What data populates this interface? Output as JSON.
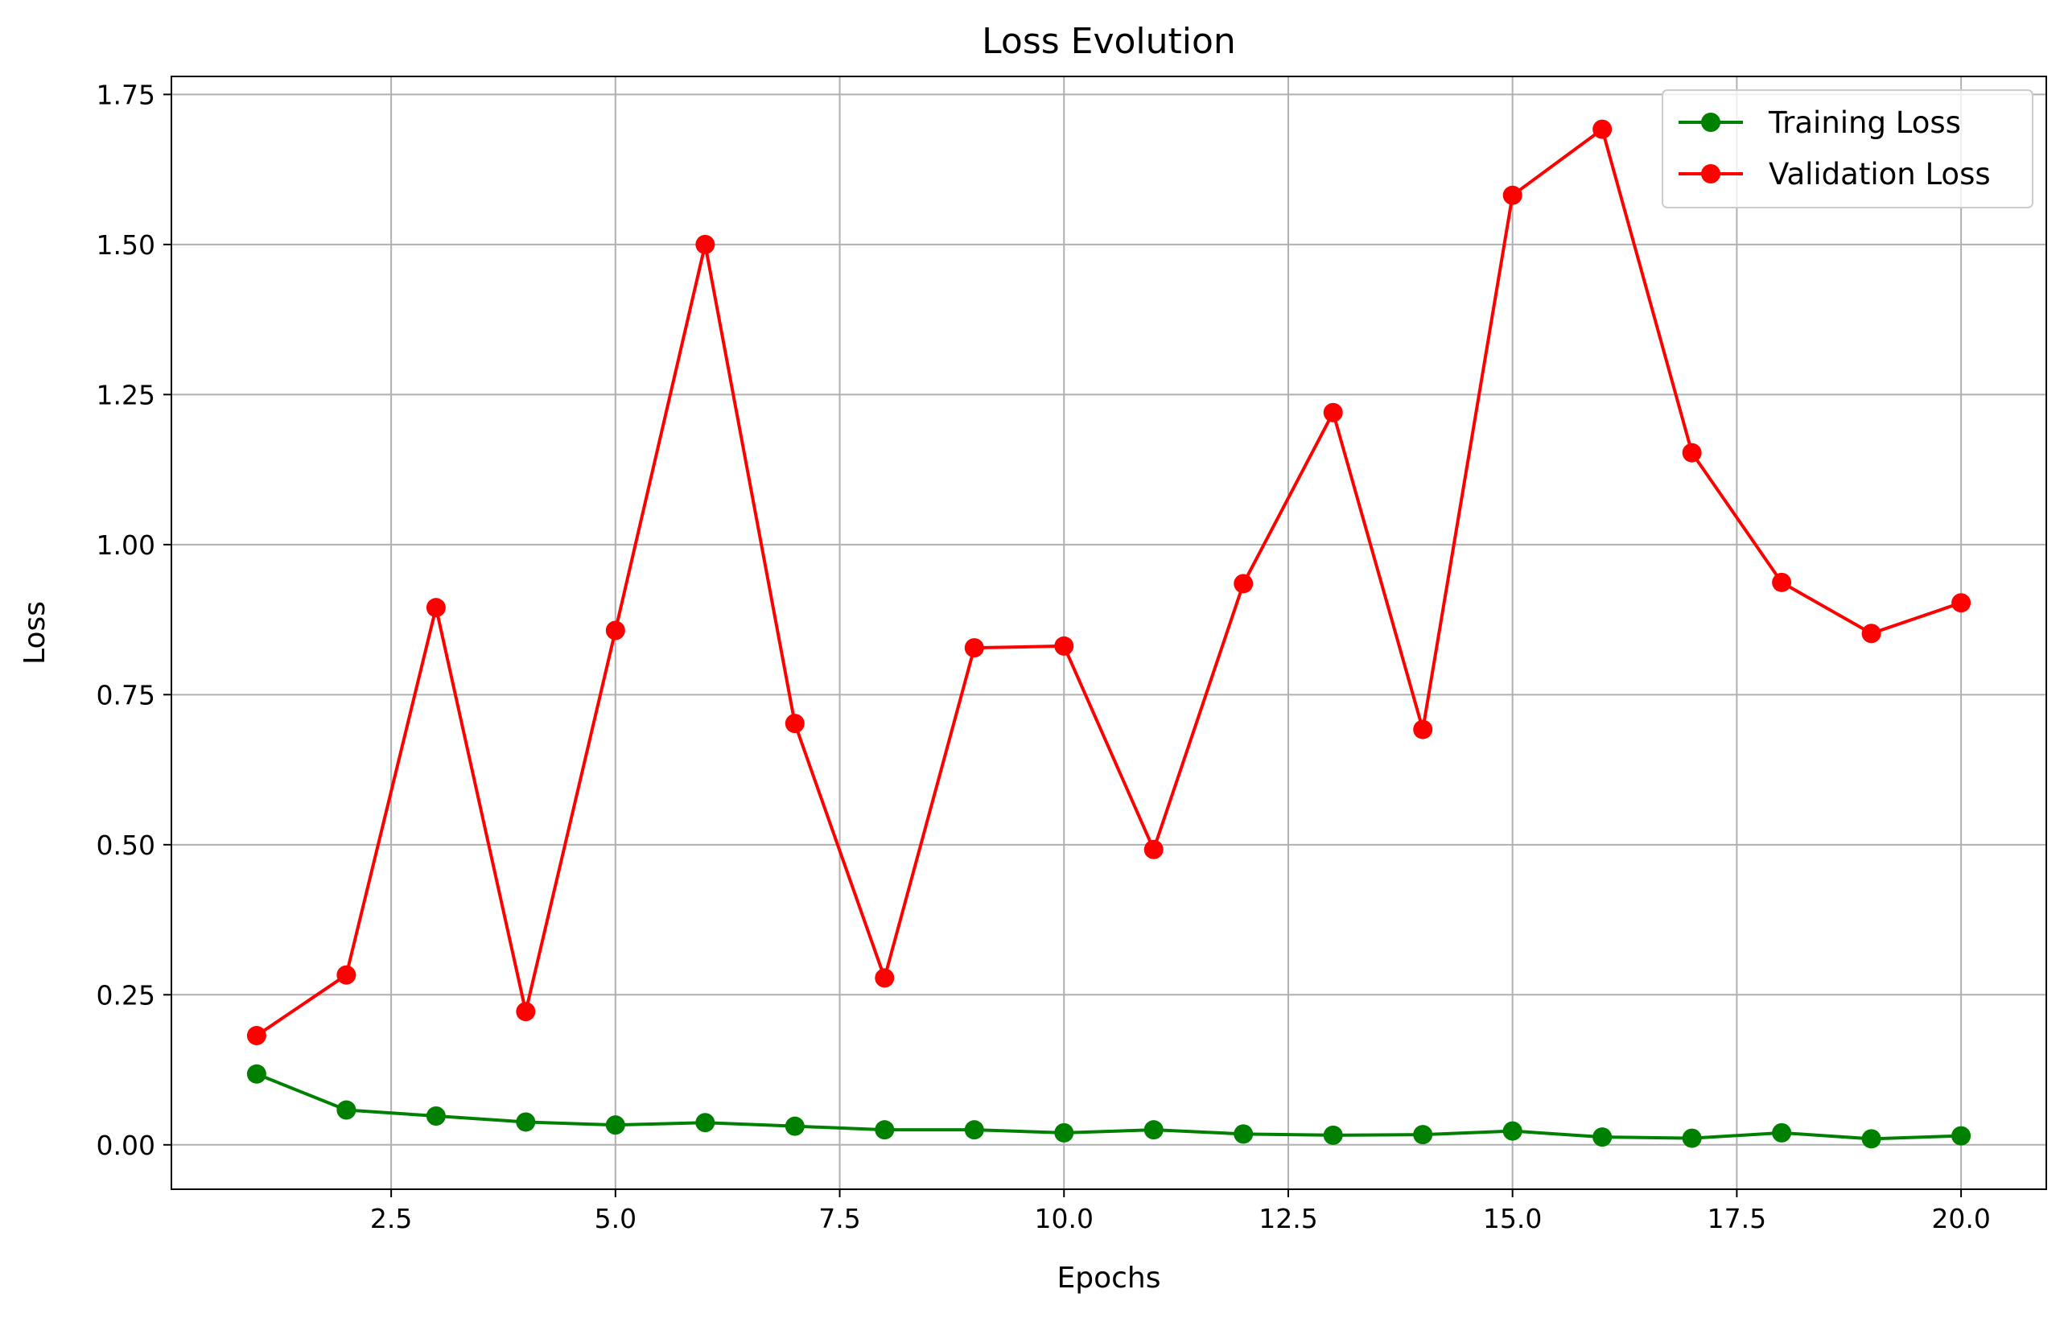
{
  "chart_data": {
    "type": "line",
    "title": "Loss Evolution",
    "xlabel": "Epochs",
    "ylabel": "Loss",
    "x": [
      1,
      2,
      3,
      4,
      5,
      6,
      7,
      8,
      9,
      10,
      11,
      12,
      13,
      14,
      15,
      16,
      17,
      18,
      19,
      20
    ],
    "xlim": [
      0.05,
      20.95
    ],
    "ylim": [
      -0.074,
      1.78
    ],
    "xticks": [
      2.5,
      5.0,
      7.5,
      10.0,
      12.5,
      15.0,
      17.5,
      20.0
    ],
    "xtick_labels": [
      "2.5",
      "5.0",
      "7.5",
      "10.0",
      "12.5",
      "15.0",
      "17.5",
      "20.0"
    ],
    "yticks": [
      0.0,
      0.25,
      0.5,
      0.75,
      1.0,
      1.25,
      1.5,
      1.75
    ],
    "ytick_labels": [
      "0.00",
      "0.25",
      "0.50",
      "0.75",
      "1.00",
      "1.25",
      "1.50",
      "1.75"
    ],
    "grid": true,
    "legend_position": "top-right",
    "series": [
      {
        "name": "Training Loss",
        "color": "#008000",
        "marker": "circle",
        "values": [
          0.118,
          0.058,
          0.048,
          0.038,
          0.033,
          0.037,
          0.031,
          0.025,
          0.025,
          0.02,
          0.025,
          0.018,
          0.016,
          0.017,
          0.023,
          0.013,
          0.011,
          0.02,
          0.01,
          0.015
        ]
      },
      {
        "name": "Validation Loss",
        "color": "#ff0000",
        "marker": "circle",
        "values": [
          0.182,
          0.283,
          0.895,
          0.222,
          0.857,
          1.5,
          0.702,
          0.278,
          0.828,
          0.831,
          0.492,
          0.935,
          1.22,
          0.692,
          1.582,
          1.692,
          1.153,
          0.937,
          0.852,
          0.903
        ]
      }
    ]
  }
}
